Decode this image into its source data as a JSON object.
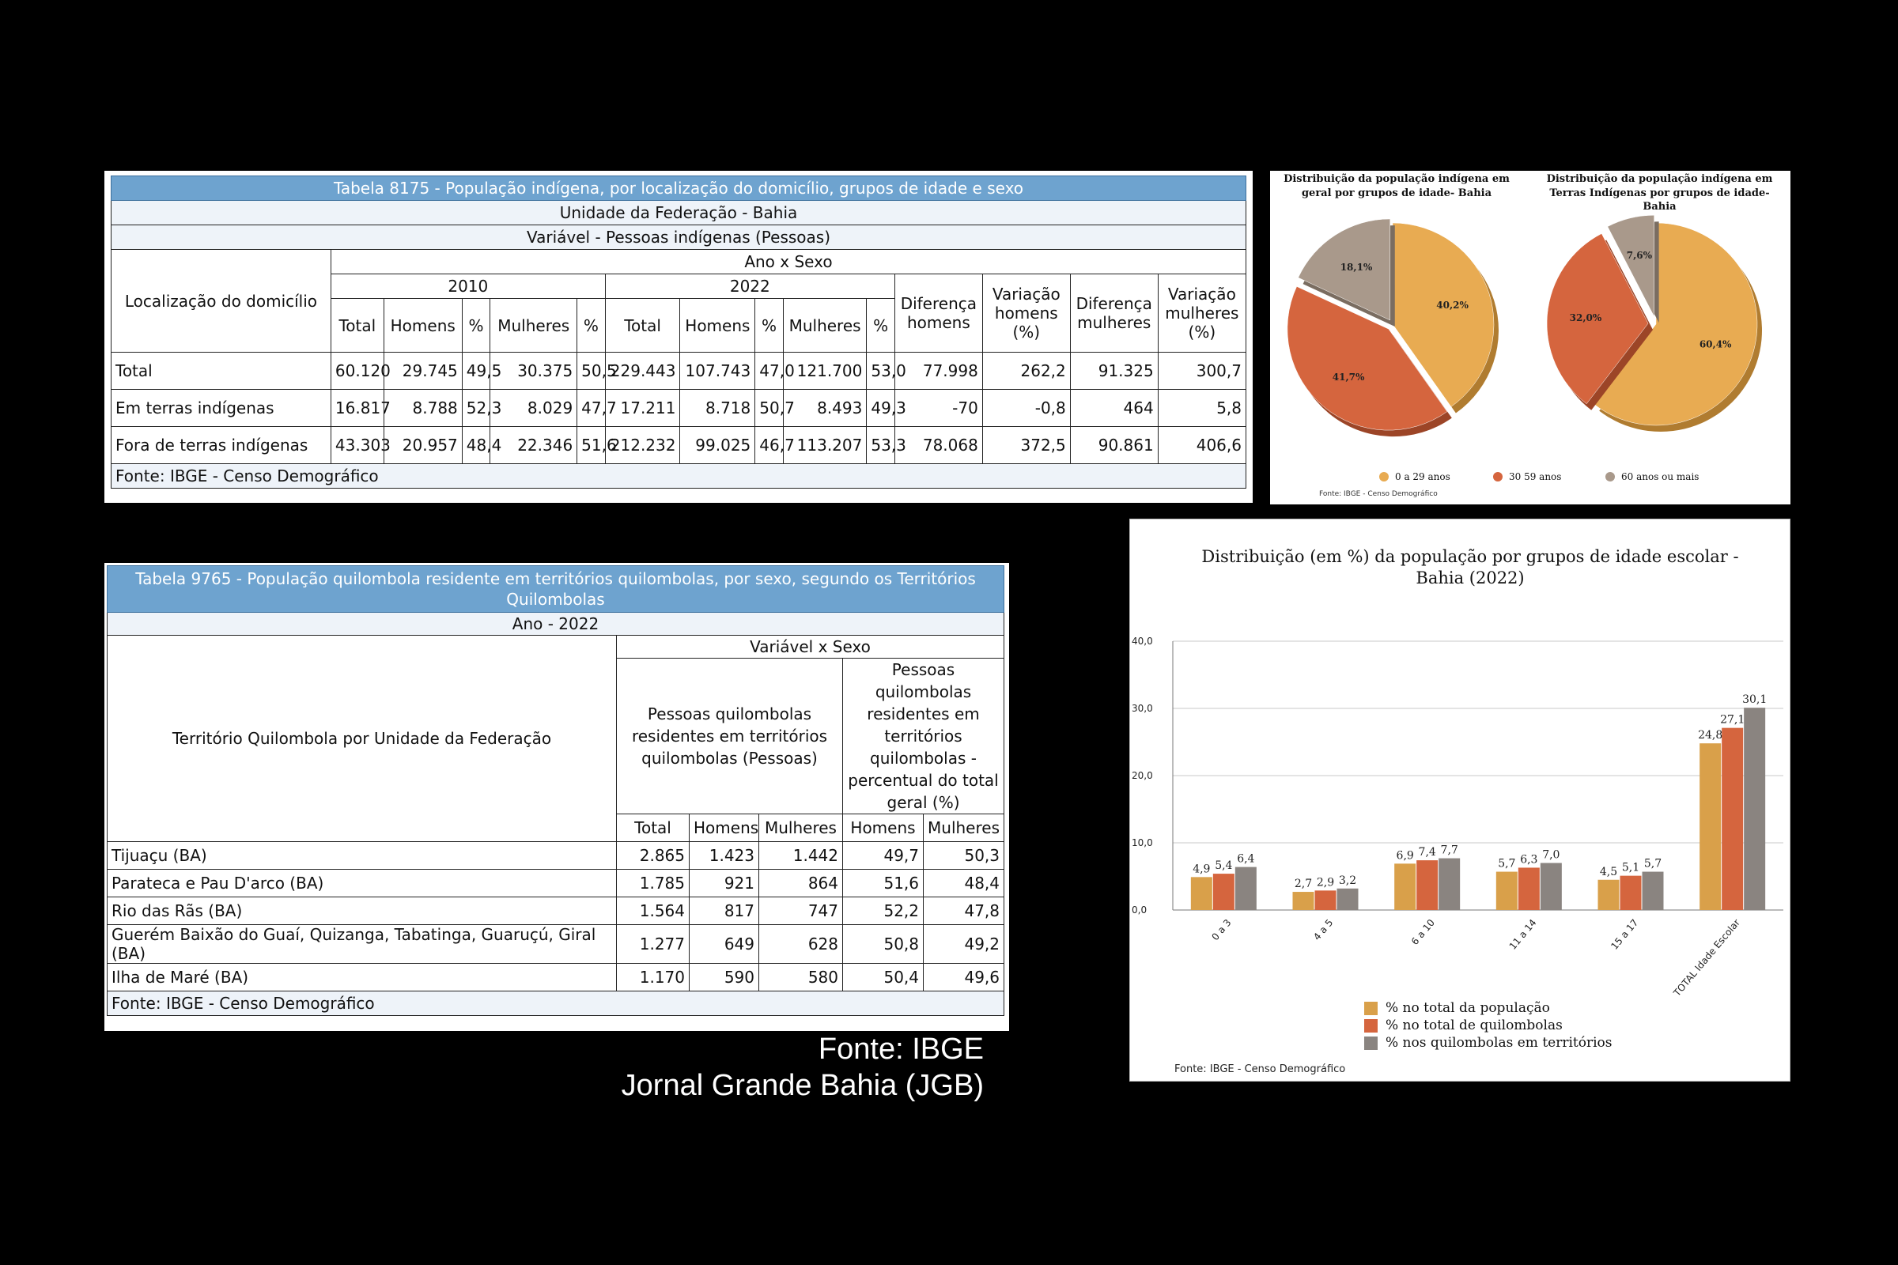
{
  "table1": {
    "title": "Tabela 8175 - População indígena, por localização do domicílio, grupos de idade e sexo",
    "subtitle1": "Unidade da Federação - Bahia",
    "subtitle2": "Variável - Pessoas indígenas (Pessoas)",
    "row_header": "Localização do domicílio",
    "group_header": "Ano x Sexo",
    "year1": "2010",
    "year2": "2022",
    "cols": [
      "Total",
      "Homens",
      "%",
      "Mulheres",
      "%",
      "Total",
      "Homens",
      "%",
      "Mulheres",
      "%"
    ],
    "extra_cols": [
      "Diferença homens",
      "Variação homens (%)",
      "Diferença mulheres",
      "Variação mulheres (%)"
    ],
    "rows": [
      {
        "label": "Total",
        "values": [
          "60.120",
          "29.745",
          "49,5",
          "30.375",
          "50,5",
          "229.443",
          "107.743",
          "47,0",
          "121.700",
          "53,0",
          "77.998",
          "262,2",
          "91.325",
          "300,7"
        ]
      },
      {
        "label": "Em terras indígenas",
        "values": [
          "16.817",
          "8.788",
          "52,3",
          "8.029",
          "47,7",
          "17.211",
          "8.718",
          "50,7",
          "8.493",
          "49,3",
          "-70",
          "-0,8",
          "464",
          "5,8"
        ]
      },
      {
        "label": "Fora de terras indígenas",
        "values": [
          "43.303",
          "20.957",
          "48,4",
          "22.346",
          "51,6",
          "212.232",
          "99.025",
          "46,7",
          "113.207",
          "53,3",
          "78.068",
          "372,5",
          "90.861",
          "406,6"
        ]
      }
    ],
    "source": "Fonte: IBGE - Censo Demográfico"
  },
  "pies": {
    "colors": {
      "young": "#e8ab52",
      "mid": "#d5653e",
      "old": "#a9998b"
    },
    "left_title": "Distribuição da população indígena em geral por grupos de idade- Bahia",
    "right_title": "Distribuição da população indígena em Terras Indígenas  por grupos de idade- Bahia",
    "legend": [
      "0 a 29 anos",
      "30  59 anos",
      "60 anos ou mais"
    ],
    "source": "Fonte: IBGE - Censo Demográfico"
  },
  "table2": {
    "title": "Tabela 9765 - População quilombola residente em territórios quilombolas, por sexo, segundo os Territórios Quilombolas",
    "subtitle": "Ano - 2022",
    "row_header": "Território Quilombola por Unidade da Federação",
    "group_header": "Variável x Sexo",
    "colgroup1": "Pessoas quilombolas residentes em territórios quilombolas (Pessoas)",
    "colgroup2": "Pessoas quilombolas residentes em territórios quilombolas - percentual do total geral (%)",
    "cols": [
      "Total",
      "Homens",
      "Mulheres",
      "Homens",
      "Mulheres"
    ],
    "rows": [
      {
        "label": "Tijuaçu (BA)",
        "values": [
          "2.865",
          "1.423",
          "1.442",
          "49,7",
          "50,3"
        ]
      },
      {
        "label": "Parateca e Pau D'arco (BA)",
        "values": [
          "1.785",
          "921",
          "864",
          "51,6",
          "48,4"
        ]
      },
      {
        "label": "Rio das Rãs (BA)",
        "values": [
          "1.564",
          "817",
          "747",
          "52,2",
          "47,8"
        ]
      },
      {
        "label": "Guerém Baixão do Guaí, Quizanga, Tabatinga, Guaruçú, Giral (BA)",
        "values": [
          "1.277",
          "649",
          "628",
          "50,8",
          "49,2"
        ]
      },
      {
        "label": "Ilha de Maré (BA)",
        "values": [
          "1.170",
          "590",
          "580",
          "50,4",
          "49,6"
        ]
      }
    ],
    "source": "Fonte: IBGE - Censo Demográfico"
  },
  "footer": {
    "line1": "Fonte: IBGE",
    "line2": "Jornal Grande Bahia (JGB)"
  },
  "chart_data": [
    {
      "type": "pie",
      "title": "Distribuição da população indígena em geral por grupos de idade- Bahia",
      "categories": [
        "0 a 29 anos",
        "30  59 anos",
        "60 anos ou mais"
      ],
      "values": [
        40.2,
        41.7,
        18.1
      ],
      "labels": [
        "40,2%",
        "41,7%",
        "18,1%"
      ]
    },
    {
      "type": "pie",
      "title": "Distribuição da população indígena em Terras Indígenas  por grupos de idade- Bahia",
      "categories": [
        "0 a 29 anos",
        "30  59 anos",
        "60 anos ou mais"
      ],
      "values": [
        60.4,
        32.0,
        7.6
      ],
      "labels": [
        "60,4%",
        "32,0%",
        "7,6%"
      ]
    },
    {
      "type": "bar",
      "title": "Distribuição (em %) da população por grupos de idade escolar - Bahia (2022)",
      "categories": [
        "0 a 3",
        "4 a 5",
        "6 a 10",
        "11 a 14",
        "15 a 17",
        "TOTAL Idade Escolar"
      ],
      "series": [
        {
          "name": "% no total da população",
          "color": "#d9a04a",
          "values": [
            4.9,
            2.7,
            6.9,
            5.7,
            4.5,
            24.8
          ],
          "labels": [
            "4,9",
            "2,7",
            "6,9",
            "5,7",
            "4,5",
            "24,8"
          ]
        },
        {
          "name": "% no total de quilombolas",
          "color": "#d5653e",
          "values": [
            5.4,
            2.9,
            7.4,
            6.3,
            5.1,
            27.1
          ],
          "labels": [
            "5,4",
            "2,9",
            "7,4",
            "6,3",
            "5,1",
            "27,1"
          ]
        },
        {
          "name": "% nos quilombolas em territórios",
          "color": "#8a8480",
          "values": [
            6.4,
            3.2,
            7.7,
            7.0,
            5.7,
            30.1
          ],
          "labels": [
            "6,4",
            "3,2",
            "7,7",
            "7,0",
            "5,7",
            "30,1"
          ]
        }
      ],
      "ylim": [
        0,
        40
      ],
      "yticks": [
        "0,0",
        "10,0",
        "20,0",
        "30,0",
        "40,0"
      ],
      "source": "Fonte: IBGE - Censo Demográfico"
    }
  ]
}
